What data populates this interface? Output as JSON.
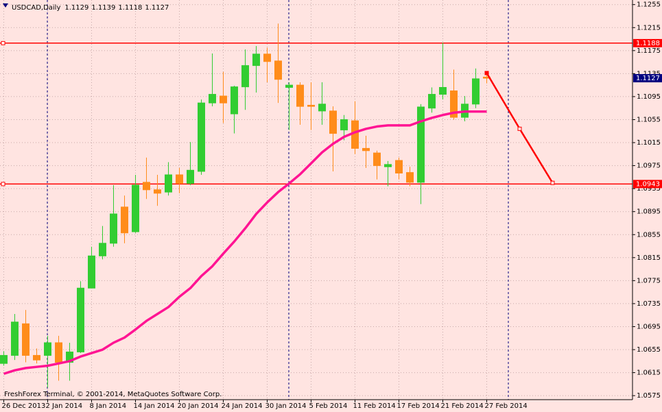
{
  "chart_data": {
    "type": "candlestick",
    "title": "USDCAD,Daily",
    "categories": [
      "26 Dec 2013",
      null,
      null,
      null,
      "2 Jan 2014",
      null,
      null,
      null,
      "8 Jan 2014",
      null,
      null,
      null,
      "14 Jan 2014",
      null,
      null,
      null,
      "20 Jan 2014",
      null,
      null,
      null,
      "24 Jan 2014",
      null,
      null,
      null,
      "30 Jan 2014",
      null,
      null,
      null,
      "5 Feb 2014",
      null,
      null,
      null,
      "11 Feb 2014",
      null,
      null,
      null,
      "17 Feb 2014",
      null,
      null,
      null,
      "21 Feb 2014",
      null,
      null,
      null,
      "27 Feb 2014"
    ],
    "open": [
      1.0631,
      1.0645,
      1.07,
      1.0645,
      1.0645,
      1.0667,
      1.0633,
      1.0651,
      1.0762,
      1.0818,
      1.084,
      1.0903,
      1.086,
      1.0946,
      1.0933,
      1.0929,
      1.0959,
      1.0944,
      1.0965,
      1.1084,
      1.1096,
      1.1065,
      1.1112,
      1.1149,
      1.1169,
      1.1157,
      1.1111,
      1.1115,
      1.108,
      1.107,
      1.107,
      1.1037,
      1.1053,
      1.1005,
      1.0997,
      1.0973,
      1.0984,
      1.0963,
      1.0946,
      1.1075,
      1.1099,
      1.1105,
      1.1059,
      1.1082,
      1.1129
    ],
    "high": [
      1.0652,
      1.0717,
      1.0724,
      1.0657,
      1.0679,
      1.0679,
      1.0667,
      1.0774,
      1.0834,
      1.087,
      1.0941,
      1.0923,
      1.0959,
      1.0989,
      1.0959,
      1.0981,
      1.0971,
      1.1016,
      1.109,
      1.117,
      1.1138,
      1.1114,
      1.1177,
      1.1183,
      1.118,
      1.1222,
      1.112,
      1.112,
      1.112,
      1.112,
      1.1078,
      1.1063,
      1.1087,
      1.1027,
      1.1001,
      1.0983,
      1.0989,
      1.0973,
      1.1082,
      1.1111,
      1.1189,
      1.1142,
      1.1096,
      1.1144,
      1.1139
    ],
    "low": [
      1.0627,
      1.0637,
      1.0633,
      1.0631,
      1.0589,
      1.0601,
      1.0601,
      1.0649,
      1.0762,
      1.0812,
      1.0834,
      1.084,
      1.0858,
      1.0917,
      1.0905,
      1.0923,
      1.0927,
      1.0941,
      1.0959,
      1.1078,
      1.1049,
      1.1031,
      1.1072,
      1.1102,
      1.112,
      1.1084,
      1.1037,
      1.1046,
      1.1037,
      1.1046,
      1.0965,
      1.1019,
      1.0995,
      1.0971,
      1.0951,
      1.0939,
      1.0951,
      1.0939,
      1.0908,
      1.1067,
      1.109,
      1.1055,
      1.1052,
      1.1075,
      1.1118
    ],
    "close": [
      1.0645,
      1.0703,
      1.0645,
      1.0637,
      1.0667,
      1.0633,
      1.0651,
      1.0762,
      1.0818,
      1.084,
      1.0891,
      1.0858,
      1.0941,
      1.0933,
      1.0927,
      1.0959,
      1.0944,
      1.0967,
      1.1084,
      1.1099,
      1.1084,
      1.1112,
      1.1149,
      1.1169,
      1.1156,
      1.1125,
      1.1115,
      1.1078,
      1.1078,
      1.1082,
      1.1031,
      1.1055,
      1.1005,
      1.1001,
      1.0975,
      1.0977,
      1.0962,
      1.0946,
      1.1077,
      1.1099,
      1.1111,
      1.1059,
      1.1082,
      1.1126,
      1.1127
    ],
    "up_color": "#32cd32",
    "down_color": "#ff8c1a",
    "ylim": [
      1.0568,
      1.1263
    ],
    "yticks": [
      1.0575,
      1.0615,
      1.0655,
      1.0695,
      1.0735,
      1.0775,
      1.0815,
      1.0855,
      1.0895,
      1.0935,
      1.0975,
      1.1015,
      1.1055,
      1.1095,
      1.1135,
      1.1175,
      1.1215,
      1.1255
    ],
    "grid": true,
    "moving_average": {
      "color": "#ff1493",
      "values": [
        1.0613,
        1.0619,
        1.0623,
        1.0625,
        1.0627,
        1.0631,
        1.0635,
        1.0643,
        1.0649,
        1.0655,
        1.0667,
        1.0676,
        1.069,
        1.0705,
        1.0717,
        1.0729,
        1.0747,
        1.0762,
        1.0783,
        1.08,
        1.0822,
        1.0843,
        1.0866,
        1.0891,
        1.0911,
        1.0929,
        1.0944,
        1.096,
        1.0979,
        1.0998,
        1.1013,
        1.1025,
        1.1033,
        1.1039,
        1.1043,
        1.1045,
        1.1045,
        1.1045,
        1.1052,
        1.1058,
        1.1063,
        1.1067,
        1.1069,
        1.1069,
        1.1069
      ]
    },
    "hlines": [
      {
        "value": 1.1188,
        "color": "#ff0000"
      },
      {
        "value": 1.0943,
        "color": "#ff0000"
      }
    ],
    "forecast": {
      "color": "#ff0000",
      "x": [
        44,
        47,
        50
      ],
      "values": [
        1.1136,
        1.1039,
        1.0945
      ]
    },
    "footer": "FreshForex Terminal, © 2001-2014, MetaQuotes Software Corp."
  }
}
